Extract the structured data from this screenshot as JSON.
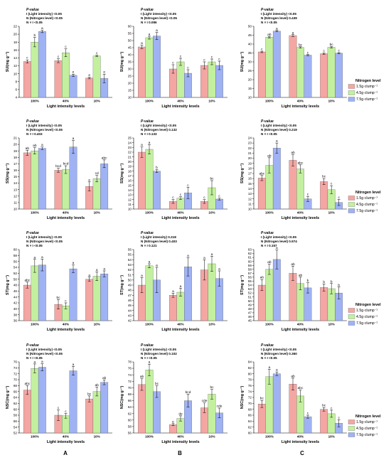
{
  "figure": {
    "x_axis_label": "Light intensity levels",
    "column_labels": [
      "A",
      "B",
      "C"
    ],
    "light_levels": [
      "100%",
      "40%",
      "10%"
    ],
    "colors": [
      "#f4a6a3",
      "#c3f09e",
      "#9fb2f4"
    ],
    "legend": {
      "title": "Nitrogen level",
      "entries": [
        "1.5g·clump⁻¹",
        "4.5g·clump⁻¹",
        "7.5g·clump⁻¹"
      ]
    }
  },
  "chart_data": [
    {
      "type": "bar",
      "row": 0,
      "col": 0,
      "ylabel": "SU(mg g⁻¹)",
      "ylim": [
        4,
        22
      ],
      "yticks": [
        4,
        6,
        8,
        10,
        12,
        14,
        16,
        18,
        20,
        22
      ],
      "pvalue": {
        "title": "P-value",
        "lines": [
          "I (Light intensity)  <0.05",
          "N (Nitrogen level)  <0.05",
          "N × I  <0.05"
        ]
      },
      "categories": [
        "100%",
        "40%",
        "10%"
      ],
      "series": [
        {
          "name": "1.5g·clump⁻¹",
          "values": [
            13.1,
            13.3,
            8.9
          ],
          "errors": [
            0.4,
            0.5,
            0.2
          ],
          "letters": [
            "c",
            "c",
            "e"
          ]
        },
        {
          "name": "4.5g·clump⁻¹",
          "values": [
            18.0,
            15.3,
            14.5
          ],
          "errors": [
            1.2,
            1.0,
            0.2
          ],
          "letters": [
            "b",
            "c",
            "c"
          ]
        },
        {
          "name": "7.5g·clump⁻¹",
          "values": [
            20.7,
            9.6,
            8.8
          ],
          "errors": [
            0.3,
            0.3,
            1.1
          ],
          "letters": [
            "a",
            "e",
            "e"
          ]
        }
      ]
    },
    {
      "type": "bar",
      "row": 0,
      "col": 1,
      "ylabel": "SU(mg g⁻¹)",
      "ylim": [
        10,
        60
      ],
      "yticks": [
        10,
        15,
        20,
        25,
        30,
        35,
        40,
        45,
        50,
        55,
        60
      ],
      "pvalue": {
        "title": "P-value",
        "lines": [
          "I (Light intensity)  <0.05",
          "N (Nitrogen level)  <0.05",
          "N × I  0.086"
        ]
      },
      "categories": [
        "100%",
        "40%",
        "10%"
      ],
      "series": [
        {
          "name": "1.5g·clump⁻¹",
          "values": [
            45.5,
            30.0,
            32.5
          ],
          "errors": [
            1.2,
            3.0,
            2.5
          ],
          "letters": [
            "a",
            "c",
            "c"
          ]
        },
        {
          "name": "4.5g·clump⁻¹",
          "values": [
            52.0,
            35.0,
            35.0
          ],
          "errors": [
            1.0,
            2.5,
            2.0
          ],
          "letters": [
            "a",
            "c",
            "c"
          ]
        },
        {
          "name": "7.5g·clump⁻¹",
          "values": [
            53.2,
            27.0,
            32.5
          ],
          "errors": [
            2.5,
            2.5,
            3.0
          ],
          "letters": [
            "a",
            "c",
            "c"
          ]
        }
      ]
    },
    {
      "type": "bar",
      "row": 0,
      "col": 2,
      "ylabel": "SU(mg g⁻¹)",
      "ylim": [
        10,
        50
      ],
      "yticks": [
        10,
        15,
        20,
        25,
        30,
        35,
        40,
        45,
        50
      ],
      "pvalue": {
        "title": "P-value",
        "lines": [
          "I (Light intensity)  <0.05",
          "N (Nitrogen level)  0.439",
          "N × I  <0.05"
        ]
      },
      "categories": [
        "100%",
        "40%",
        "10%"
      ],
      "series": [
        {
          "name": "1.5g·clump⁻¹",
          "values": [
            35.6,
            44.8,
            34.6
          ],
          "errors": [
            0.4,
            0.5,
            0.4
          ],
          "letters": [
            "c",
            "a",
            "c"
          ]
        },
        {
          "name": "4.5g·clump⁻¹",
          "values": [
            43.9,
            38.1,
            38.2
          ],
          "errors": [
            0.4,
            0.4,
            0.4
          ],
          "letters": [
            "ab",
            "bc",
            "bc"
          ]
        },
        {
          "name": "7.5g·clump⁻¹",
          "values": [
            47.3,
            33.8,
            34.9
          ],
          "errors": [
            0.4,
            0.3,
            0.3
          ],
          "letters": [
            "a",
            "c",
            "c"
          ]
        }
      ]
    },
    {
      "type": "bar",
      "row": 1,
      "col": 0,
      "ylabel": "SS(mg g⁻¹)",
      "ylim": [
        10,
        21
      ],
      "yticks": [
        10,
        11,
        12,
        13,
        14,
        15,
        16,
        17,
        18,
        19,
        20,
        21
      ],
      "pvalue": {
        "title": "P-value",
        "lines": [
          "I (Light intensity)  <0.05",
          "N (Nitrogen level)  <0.05",
          "N × I  0.403"
        ]
      },
      "categories": [
        "100%",
        "40%",
        "10%"
      ],
      "series": [
        {
          "name": "1.5g·clump⁻¹",
          "values": [
            18.7,
            16.0,
            13.5
          ],
          "errors": [
            0.4,
            0.3,
            0.7
          ],
          "letters": [
            "ab",
            "bcd",
            "e"
          ]
        },
        {
          "name": "4.5g·clump⁻¹",
          "values": [
            19.0,
            16.1,
            14.7
          ],
          "errors": [
            0.5,
            0.6,
            0.5
          ],
          "letters": [
            "ab",
            "bcd",
            "cd"
          ]
        },
        {
          "name": "7.5g·clump⁻¹",
          "values": [
            19.4,
            19.6,
            17.0
          ],
          "errors": [
            0.2,
            1.0,
            0.6
          ],
          "letters": [
            "a",
            "a",
            "abc"
          ]
        }
      ]
    },
    {
      "type": "bar",
      "row": 1,
      "col": 1,
      "ylabel": "SS(mg g⁻¹)",
      "ylim": [
        10,
        25
      ],
      "yticks": [
        10,
        11,
        12,
        13,
        14,
        15,
        16,
        17,
        18,
        19,
        20,
        21,
        22,
        23,
        24,
        25
      ],
      "pvalue": {
        "title": "P-value",
        "lines": [
          "I (Light intensity)  <0.05",
          "N (Nitrogen level)  0.132",
          "N × I  0.133"
        ]
      },
      "categories": [
        "100%",
        "40%",
        "10%"
      ],
      "series": [
        {
          "name": "1.5g·clump⁻¹",
          "values": [
            22.0,
            11.6,
            11.6
          ],
          "errors": [
            1.1,
            0.4,
            0.4
          ],
          "letters": [
            "a",
            "c",
            "c"
          ]
        },
        {
          "name": "4.5g·clump⁻¹",
          "values": [
            22.6,
            12.3,
            14.5
          ],
          "errors": [
            1.0,
            0.3,
            1.5
          ],
          "letters": [
            "a",
            "c",
            "bc"
          ]
        },
        {
          "name": "7.5g·clump⁻¹",
          "values": [
            18.0,
            13.4,
            12.1
          ],
          "errors": [
            0.3,
            1.2,
            0.2
          ],
          "letters": [
            "b",
            "c",
            "c"
          ]
        }
      ]
    },
    {
      "type": "bar",
      "row": 1,
      "col": 2,
      "ylabel": "SS(mg g⁻¹)",
      "ylim": [
        10,
        24
      ],
      "yticks": [
        10,
        11,
        12,
        13,
        14,
        15,
        16,
        17,
        18,
        19,
        20,
        21,
        22,
        23,
        24
      ],
      "pvalue": {
        "title": "P-value",
        "lines": [
          "I (Light intensity)  <0.05",
          "N (Nitrogen level)  0.219",
          "N × I  <0.05"
        ]
      },
      "categories": [
        "100%",
        "40%",
        "10%"
      ],
      "series": [
        {
          "name": "1.5g·clump⁻¹",
          "values": [
            16.1,
            19.6,
            15.4
          ],
          "errors": [
            0.5,
            1.1,
            0.6
          ],
          "letters": [
            "abc",
            "ab",
            "bc"
          ]
        },
        {
          "name": "4.5g·clump⁻¹",
          "values": [
            18.6,
            17.9,
            13.8
          ],
          "errors": [
            1.5,
            0.8,
            0.8
          ],
          "letters": [
            "ab",
            "abc",
            "c"
          ]
        },
        {
          "name": "7.5g·clump⁻¹",
          "values": [
            22.0,
            12.0,
            11.3
          ],
          "errors": [
            1.0,
            0.5,
            0.6
          ],
          "letters": [
            "a",
            "c",
            "c"
          ]
        }
      ]
    },
    {
      "type": "bar",
      "row": 2,
      "col": 0,
      "ylabel": "ST(mg g⁻¹)",
      "ylim": [
        36,
        60
      ],
      "yticks": [
        36,
        38,
        40,
        42,
        44,
        46,
        48,
        50,
        52,
        54,
        56,
        58,
        60
      ],
      "pvalue": {
        "title": "P-value",
        "lines": [
          "I (Light intensity)  <0.05",
          "N (Nitrogen level)  <0.05",
          "N × I  <0.05"
        ]
      },
      "categories": [
        "100%",
        "40%",
        "10%"
      ],
      "series": [
        {
          "name": "1.5g·clump⁻¹",
          "values": [
            48.0,
            41.5,
            50.0
          ],
          "errors": [
            1.0,
            1.6,
            0.7
          ],
          "letters": [
            "abc",
            "bc",
            "a"
          ]
        },
        {
          "name": "4.5g·clump⁻¹",
          "values": [
            54.5,
            41.0,
            51.0
          ],
          "errors": [
            2.2,
            1.0,
            1.5
          ],
          "letters": [
            "a",
            "c",
            "a"
          ]
        },
        {
          "name": "7.5g·clump⁻¹",
          "values": [
            54.8,
            53.5,
            51.8
          ],
          "errors": [
            2.0,
            1.3,
            1.0
          ],
          "letters": [
            "a",
            "a",
            "a"
          ]
        }
      ]
    },
    {
      "type": "bar",
      "row": 2,
      "col": 1,
      "ylabel": "ST(mg g⁻¹)",
      "ylim": [
        42,
        56
      ],
      "yticks": [
        42,
        43,
        44,
        45,
        46,
        47,
        48,
        49,
        50,
        51,
        52,
        53,
        54,
        55,
        56
      ],
      "pvalue": {
        "title": "P-value",
        "lines": [
          "I (Light intensity)  0.218",
          "N (Nitrogen level)  0.403",
          "N × I  0.121"
        ]
      },
      "categories": [
        "100%",
        "40%",
        "10%"
      ],
      "series": [
        {
          "name": "1.5g·clump⁻¹",
          "values": [
            49.0,
            47.0,
            52.0
          ],
          "errors": [
            1.5,
            0.4,
            2.0
          ],
          "letters": [
            "a",
            "a",
            "a"
          ]
        },
        {
          "name": "4.5g·clump⁻¹",
          "values": [
            52.8,
            47.6,
            53.2
          ],
          "errors": [
            0.4,
            0.8,
            1.5
          ],
          "letters": [
            "a",
            "a",
            "a"
          ]
        },
        {
          "name": "7.5g·clump⁻¹",
          "values": [
            50.0,
            52.6,
            50.3
          ],
          "errors": [
            2.5,
            1.8,
            1.5
          ],
          "letters": [
            "a",
            "a",
            "a"
          ]
        }
      ]
    },
    {
      "type": "bar",
      "row": 2,
      "col": 2,
      "ylabel": "ST(mg g⁻¹)",
      "ylim": [
        45,
        63
      ],
      "yticks": [
        45,
        46,
        47,
        48,
        49,
        50,
        51,
        52,
        53,
        54,
        55,
        56,
        57,
        58,
        59,
        60,
        61,
        62,
        63
      ],
      "pvalue": {
        "title": "P-value",
        "lines": [
          "I (Light intensity)  <0.05",
          "N (Nitrogen level)  0.974",
          "N × I  0.157"
        ]
      },
      "categories": [
        "100%",
        "40%",
        "10%"
      ],
      "series": [
        {
          "name": "1.5g·clump⁻¹",
          "values": [
            54.0,
            57.0,
            53.4
          ],
          "errors": [
            1.4,
            1.8,
            0.9
          ],
          "letters": [
            "ab",
            "ab",
            "b"
          ]
        },
        {
          "name": "4.5g·clump⁻¹",
          "values": [
            58.0,
            54.4,
            53.1
          ],
          "errors": [
            1.3,
            1.6,
            1.3
          ],
          "letters": [
            "ab",
            "ab",
            "b"
          ]
        },
        {
          "name": "7.5g·clump⁻¹",
          "values": [
            60.5,
            53.3,
            52.0
          ],
          "errors": [
            2.4,
            1.3,
            1.5
          ],
          "letters": [
            "a",
            "b",
            "b"
          ]
        }
      ]
    },
    {
      "type": "bar",
      "row": 3,
      "col": 0,
      "ylabel": "NSC(mg g⁻¹)",
      "ylim": [
        52,
        76
      ],
      "yticks": [
        52,
        54,
        56,
        58,
        60,
        62,
        64,
        66,
        68,
        70,
        72,
        74,
        76
      ],
      "pvalue": {
        "title": "P-value",
        "lines": [
          "I (Light intensity)  <0.05",
          "N (Nitrogen level)  <0.05",
          "N × I  <0.05"
        ]
      },
      "categories": [
        "100%",
        "40%",
        "10%"
      ],
      "series": [
        {
          "name": "1.5g·clump⁻¹",
          "values": [
            66.5,
            58.0,
            63.5
          ],
          "errors": [
            1.5,
            1.8,
            1.0
          ],
          "letters": [
            "abc",
            "c",
            "bc"
          ]
        },
        {
          "name": "4.5g·clump⁻¹",
          "values": [
            73.8,
            57.8,
            66.0
          ],
          "errors": [
            1.5,
            0.8,
            1.5
          ],
          "letters": [
            "a",
            "c",
            "ab"
          ]
        },
        {
          "name": "7.5g·clump⁻¹",
          "values": [
            74.2,
            73.0,
            69.1
          ],
          "errors": [
            1.2,
            1.5,
            0.8
          ],
          "letters": [
            "a",
            "a",
            "ab"
          ]
        }
      ]
    },
    {
      "type": "bar",
      "row": 3,
      "col": 1,
      "ylabel": "NSC(mg g⁻¹)",
      "ylim": [
        56,
        78
      ],
      "yticks": [
        56,
        58,
        60,
        62,
        64,
        66,
        68,
        70,
        72,
        74,
        76,
        78
      ],
      "pvalue": {
        "title": "P-value",
        "lines": [
          "I (Light intensity)  <0.05",
          "N (Nitrogen level)  0.102",
          "N × I  <0.05"
        ]
      },
      "categories": [
        "100%",
        "40%",
        "10%"
      ],
      "series": [
        {
          "name": "1.5g·clump⁻¹",
          "values": [
            71.0,
            58.6,
            63.8
          ],
          "errors": [
            1.8,
            0.3,
            1.5
          ],
          "letters": [
            "ab",
            "e",
            "cde"
          ]
        },
        {
          "name": "4.5g·clump⁻¹",
          "values": [
            75.5,
            60.5,
            68.0
          ],
          "errors": [
            1.8,
            0.8,
            1.5
          ],
          "letters": [
            "a",
            "de",
            "bc"
          ]
        },
        {
          "name": "7.5g·clump⁻¹",
          "values": [
            68.8,
            66.0,
            62.2
          ],
          "errors": [
            1.8,
            2.0,
            1.5
          ],
          "letters": [
            "bc",
            "bcd",
            "cde"
          ]
        }
      ]
    },
    {
      "type": "bar",
      "row": 3,
      "col": 2,
      "ylabel": "NSC(mg g⁻¹)",
      "ylim": [
        60,
        84
      ],
      "yticks": [
        60,
        62,
        64,
        66,
        68,
        70,
        72,
        74,
        76,
        78,
        80,
        82,
        84
      ],
      "pvalue": {
        "title": "P-value",
        "lines": [
          "I (Light intensity)  <0.05",
          "N (Nitrogen level)  0.360",
          "N × I  <0.05"
        ]
      },
      "categories": [
        "100%",
        "40%",
        "10%"
      ],
      "series": [
        {
          "name": "1.5g·clump⁻¹",
          "values": [
            69.8,
            76.5,
            68.0
          ],
          "errors": [
            1.2,
            2.0,
            0.6
          ],
          "letters": [
            "bc",
            "ab",
            "bc"
          ]
        },
        {
          "name": "4.5g·clump⁻¹",
          "values": [
            79.0,
            72.5,
            66.5
          ],
          "errors": [
            2.5,
            2.0,
            1.2
          ],
          "letters": [
            "a",
            "abc",
            "c"
          ]
        },
        {
          "name": "7.5g·clump⁻¹",
          "values": [
            80.0,
            65.5,
            63.3
          ],
          "errors": [
            0.6,
            0.5,
            1.2
          ],
          "letters": [
            "a",
            "c",
            "c"
          ]
        }
      ]
    }
  ]
}
